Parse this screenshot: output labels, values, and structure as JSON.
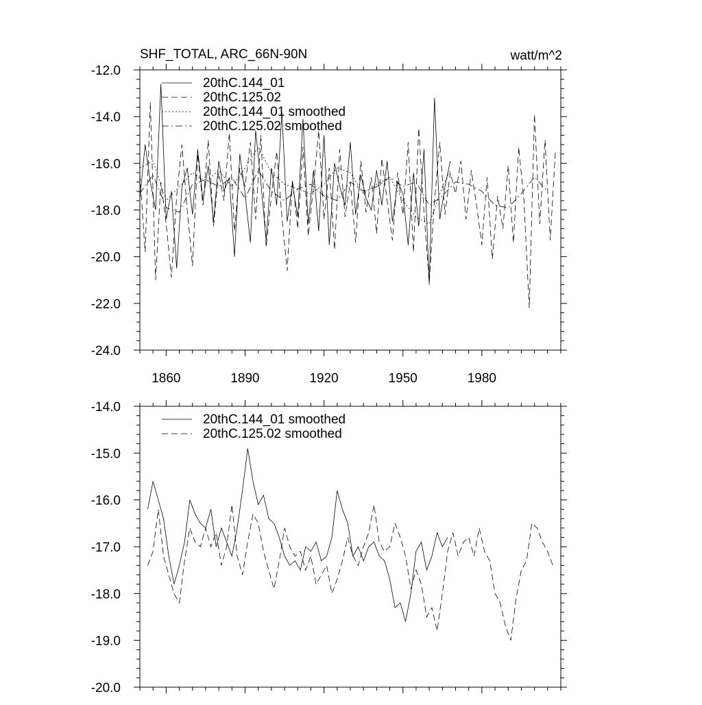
{
  "header": {
    "title": "SHF_TOTAL, ARC_66N-90N",
    "units": "watt/m^2"
  },
  "chart_data": [
    {
      "type": "line",
      "title": "SHF_TOTAL, ARC_66N-90N",
      "units_label": "watt/m^2",
      "xlabel": "",
      "ylabel": "",
      "xlim": [
        1850,
        2010
      ],
      "ylim": [
        -24.0,
        -12.0
      ],
      "yticks": [
        -12.0,
        -14.0,
        -16.0,
        -18.0,
        -20.0,
        -22.0,
        -24.0
      ],
      "ytick_labels": [
        "-12.0",
        "-14.0",
        "-16.0",
        "-18.0",
        "-20.0",
        "-22.0",
        "-24.0"
      ],
      "xticks": [
        1860,
        1890,
        1920,
        1950,
        1980
      ],
      "xtick_labels": [
        "1860",
        "1890",
        "1920",
        "1950",
        "1980"
      ],
      "legend_position": "top-left",
      "series": [
        {
          "name": "20thC.144_01",
          "style": "solid",
          "x": [
            1850,
            1852,
            1854,
            1856,
            1858,
            1860,
            1862,
            1864,
            1866,
            1868,
            1870,
            1872,
            1874,
            1876,
            1878,
            1880,
            1882,
            1884,
            1886,
            1888,
            1890,
            1892,
            1894,
            1896,
            1898,
            1900,
            1902,
            1904,
            1906,
            1908,
            1910,
            1912,
            1914,
            1916,
            1918,
            1920,
            1922,
            1924,
            1926,
            1928,
            1930,
            1932,
            1934,
            1936,
            1938,
            1940,
            1942,
            1944,
            1946,
            1948,
            1950,
            1952,
            1954,
            1956,
            1958,
            1960,
            1962,
            1964,
            1966,
            1968
          ],
          "values": [
            -17.5,
            -15.2,
            -16.8,
            -18.0,
            -12.6,
            -18.4,
            -17.2,
            -20.5,
            -17.0,
            -16.2,
            -18.2,
            -15.4,
            -17.6,
            -16.1,
            -18.5,
            -15.9,
            -17.2,
            -16.6,
            -20.0,
            -15.6,
            -17.3,
            -19.4,
            -14.6,
            -16.8,
            -19.3,
            -16.2,
            -17.8,
            -13.8,
            -18.5,
            -16.9,
            -18.3,
            -14.1,
            -18.6,
            -16.3,
            -18.9,
            -14.8,
            -19.5,
            -16.0,
            -17.0,
            -17.8,
            -15.1,
            -18.2,
            -16.5,
            -17.5,
            -18.0,
            -16.3,
            -17.8,
            -15.9,
            -18.5,
            -16.8,
            -17.3,
            -19.5,
            -16.4,
            -18.7,
            -15.4,
            -21.2,
            -13.2,
            -18.4,
            -17.0,
            -15.9
          ]
        },
        {
          "name": "20thC.125.02",
          "style": "dashed",
          "x": [
            1850,
            1852,
            1854,
            1856,
            1858,
            1860,
            1862,
            1864,
            1866,
            1868,
            1870,
            1872,
            1874,
            1876,
            1878,
            1880,
            1882,
            1884,
            1886,
            1888,
            1890,
            1892,
            1894,
            1896,
            1898,
            1900,
            1902,
            1904,
            1906,
            1908,
            1910,
            1912,
            1914,
            1916,
            1918,
            1920,
            1922,
            1924,
            1926,
            1928,
            1930,
            1932,
            1934,
            1936,
            1938,
            1940,
            1942,
            1944,
            1946,
            1948,
            1950,
            1952,
            1954,
            1956,
            1958,
            1960,
            1962,
            1964,
            1966,
            1968,
            1970,
            1972,
            1974,
            1976,
            1978,
            1980,
            1982,
            1984,
            1986,
            1988,
            1990,
            1992,
            1994,
            1996,
            1998,
            2000,
            2002,
            2004,
            2006,
            2008
          ],
          "values": [
            -16.5,
            -19.8,
            -13.4,
            -21.0,
            -16.8,
            -18.6,
            -20.9,
            -17.4,
            -15.2,
            -18.0,
            -20.4,
            -15.6,
            -17.8,
            -15.0,
            -18.7,
            -16.4,
            -17.6,
            -14.7,
            -18.9,
            -16.2,
            -17.0,
            -15.1,
            -18.4,
            -14.8,
            -19.6,
            -17.4,
            -15.5,
            -18.3,
            -20.6,
            -16.7,
            -18.8,
            -15.3,
            -19.1,
            -17.0,
            -14.6,
            -18.4,
            -16.2,
            -19.7,
            -15.4,
            -18.3,
            -16.8,
            -19.4,
            -15.9,
            -18.1,
            -16.6,
            -19.0,
            -15.8,
            -17.6,
            -19.3,
            -16.4,
            -18.2,
            -15.1,
            -19.8,
            -14.5,
            -18.1,
            -21.1,
            -17.6,
            -15.1,
            -18.2,
            -16.4,
            -17.3,
            -15.9,
            -18.4,
            -16.3,
            -17.8,
            -19.5,
            -16.6,
            -20.1,
            -17.4,
            -18.8,
            -16.1,
            -19.4,
            -15.3,
            -17.6,
            -22.2,
            -13.9,
            -18.6,
            -15.0,
            -19.3,
            -15.4
          ]
        },
        {
          "name": "20thC.144_01 smoothed",
          "style": "dotted",
          "x": [
            1850,
            1855,
            1860,
            1865,
            1870,
            1875,
            1880,
            1885,
            1890,
            1895,
            1900,
            1905,
            1910,
            1915,
            1920,
            1925,
            1930,
            1935,
            1940,
            1945,
            1950,
            1955,
            1960,
            1965,
            1968
          ],
          "values": [
            -16.2,
            -15.9,
            -17.6,
            -17.0,
            -16.4,
            -16.8,
            -16.3,
            -17.0,
            -16.2,
            -15.3,
            -16.4,
            -16.9,
            -17.1,
            -17.3,
            -16.9,
            -16.2,
            -16.4,
            -17.3,
            -16.9,
            -16.6,
            -17.6,
            -18.3,
            -18.6,
            -17.0,
            -16.3
          ]
        },
        {
          "name": "20thC.125.02 smoothed",
          "style": "dashdot",
          "x": [
            1850,
            1855,
            1860,
            1865,
            1870,
            1875,
            1880,
            1885,
            1890,
            1895,
            1900,
            1905,
            1910,
            1915,
            1920,
            1925,
            1930,
            1935,
            1940,
            1945,
            1950,
            1955,
            1960,
            1965,
            1970,
            1975,
            1980,
            1985,
            1990,
            1995,
            2000,
            2005
          ],
          "values": [
            -17.3,
            -16.5,
            -17.9,
            -18.1,
            -16.9,
            -16.7,
            -17.0,
            -16.6,
            -17.5,
            -16.3,
            -17.2,
            -17.6,
            -17.1,
            -16.9,
            -17.4,
            -17.6,
            -16.8,
            -17.2,
            -17.0,
            -16.6,
            -17.0,
            -16.8,
            -17.8,
            -17.4,
            -16.8,
            -16.9,
            -17.2,
            -17.8,
            -17.9,
            -17.3,
            -16.6,
            -17.2
          ]
        }
      ]
    },
    {
      "type": "line",
      "title": "",
      "xlabel": "",
      "ylabel": "",
      "xlim": [
        1850,
        2010
      ],
      "ylim": [
        -20.0,
        -14.0
      ],
      "yticks": [
        -14.0,
        -15.0,
        -16.0,
        -17.0,
        -18.0,
        -19.0,
        -20.0
      ],
      "ytick_labels": [
        "-14.0",
        "-15.0",
        "-16.0",
        "-17.0",
        "-18.0",
        "-19.0",
        "-20.0"
      ],
      "xticks": [
        1860,
        1890,
        1920,
        1950,
        1980
      ],
      "legend_position": "top-left",
      "series": [
        {
          "name": "20thC.144_01 smoothed",
          "style": "solid",
          "x": [
            1853,
            1855,
            1857,
            1859,
            1861,
            1863,
            1865,
            1867,
            1869,
            1871,
            1873,
            1875,
            1877,
            1879,
            1881,
            1883,
            1885,
            1887,
            1889,
            1891,
            1893,
            1895,
            1897,
            1899,
            1901,
            1903,
            1905,
            1907,
            1909,
            1911,
            1913,
            1915,
            1917,
            1919,
            1921,
            1923,
            1925,
            1927,
            1929,
            1931,
            1933,
            1935,
            1937,
            1939,
            1941,
            1943,
            1945,
            1947,
            1949,
            1951,
            1953,
            1955,
            1957,
            1959,
            1961,
            1963,
            1965,
            1967
          ],
          "values": [
            -16.2,
            -15.6,
            -16.0,
            -16.4,
            -17.2,
            -17.8,
            -17.4,
            -16.9,
            -16.0,
            -16.3,
            -16.5,
            -16.6,
            -16.2,
            -17.0,
            -16.6,
            -16.9,
            -17.2,
            -16.6,
            -15.8,
            -14.9,
            -15.6,
            -16.1,
            -15.9,
            -16.4,
            -16.5,
            -16.8,
            -17.2,
            -17.4,
            -17.3,
            -17.5,
            -17.0,
            -17.1,
            -16.9,
            -17.3,
            -17.2,
            -16.8,
            -15.8,
            -16.2,
            -16.5,
            -17.2,
            -17.0,
            -17.3,
            -17.0,
            -16.9,
            -17.2,
            -17.3,
            -17.7,
            -18.3,
            -18.2,
            -18.6,
            -18.0,
            -17.1,
            -16.9,
            -17.5,
            -17.2,
            -16.7,
            -17.0,
            -16.8
          ]
        },
        {
          "name": "20thC.125.02 smoothed",
          "style": "dashed",
          "x": [
            1853,
            1855,
            1857,
            1859,
            1861,
            1863,
            1865,
            1867,
            1869,
            1871,
            1873,
            1875,
            1877,
            1879,
            1881,
            1883,
            1885,
            1887,
            1889,
            1891,
            1893,
            1895,
            1897,
            1899,
            1901,
            1903,
            1905,
            1907,
            1909,
            1911,
            1913,
            1915,
            1917,
            1919,
            1921,
            1923,
            1925,
            1927,
            1929,
            1931,
            1933,
            1935,
            1937,
            1939,
            1941,
            1943,
            1945,
            1947,
            1949,
            1951,
            1953,
            1955,
            1957,
            1959,
            1961,
            1963,
            1965,
            1967,
            1969,
            1971,
            1973,
            1975,
            1977,
            1979,
            1981,
            1983,
            1985,
            1987,
            1989,
            1991,
            1993,
            1995,
            1997,
            1999,
            2001,
            2003,
            2005,
            2007
          ],
          "values": [
            -17.4,
            -17.1,
            -16.2,
            -17.2,
            -17.6,
            -18.0,
            -18.2,
            -17.3,
            -16.6,
            -16.9,
            -17.0,
            -16.6,
            -17.0,
            -16.7,
            -17.4,
            -17.0,
            -16.1,
            -17.2,
            -17.6,
            -16.9,
            -16.3,
            -16.5,
            -17.1,
            -17.5,
            -17.9,
            -17.3,
            -16.6,
            -17.0,
            -17.2,
            -17.1,
            -17.5,
            -17.2,
            -17.8,
            -17.6,
            -17.4,
            -18.0,
            -17.7,
            -17.3,
            -16.8,
            -17.2,
            -17.4,
            -17.0,
            -16.7,
            -16.1,
            -16.9,
            -17.1,
            -17.0,
            -16.5,
            -16.8,
            -17.2,
            -17.9,
            -17.5,
            -17.8,
            -18.5,
            -18.3,
            -18.8,
            -18.0,
            -17.1,
            -16.7,
            -17.2,
            -16.9,
            -16.8,
            -17.2,
            -16.6,
            -17.1,
            -17.3,
            -18.0,
            -18.2,
            -18.7,
            -19.0,
            -18.1,
            -17.5,
            -17.3,
            -16.5,
            -16.6,
            -16.9,
            -17.1,
            -17.4
          ]
        }
      ]
    }
  ]
}
